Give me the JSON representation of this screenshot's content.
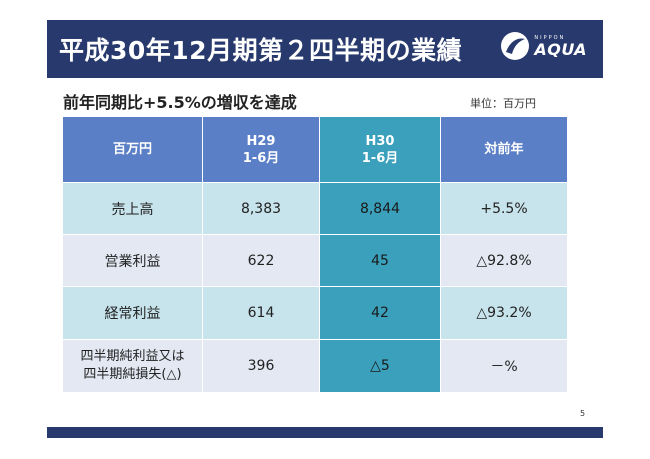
{
  "header": {
    "title": "平成30年12月期第２四半期の業績",
    "logo_small": "NIPPON",
    "logo_big": "AQUA"
  },
  "subtitle": "前年同期比+5.5%の増収を達成",
  "unit": "単位：百万円",
  "table": {
    "columns": [
      {
        "line1": "百万円",
        "line2": ""
      },
      {
        "line1": "H29",
        "line2": "1-6月"
      },
      {
        "line1": "H30",
        "line2": "1-6月"
      },
      {
        "line1": "対前年",
        "line2": ""
      }
    ],
    "rows": [
      {
        "label": [
          "売上高"
        ],
        "h29": "8,383",
        "h30": "8,844",
        "yoy": "+5.5%"
      },
      {
        "label": [
          "営業利益"
        ],
        "h29": "622",
        "h30": "45",
        "yoy": "△92.8%"
      },
      {
        "label": [
          "経常利益"
        ],
        "h29": "614",
        "h30": "42",
        "yoy": "△93.2%"
      },
      {
        "label": [
          "四半期純利益又は",
          "四半期純損失(△)"
        ],
        "h29": "396",
        "h30": "△5",
        "yoy": "－%"
      }
    ]
  },
  "page_number": "5",
  "colors": {
    "navy": "#283a6d",
    "header_blue": "#5b7fc7",
    "teal": "#3aa0bb",
    "row_light_teal": "#c7e3ec",
    "row_light_gray": "#e3e8f3"
  }
}
